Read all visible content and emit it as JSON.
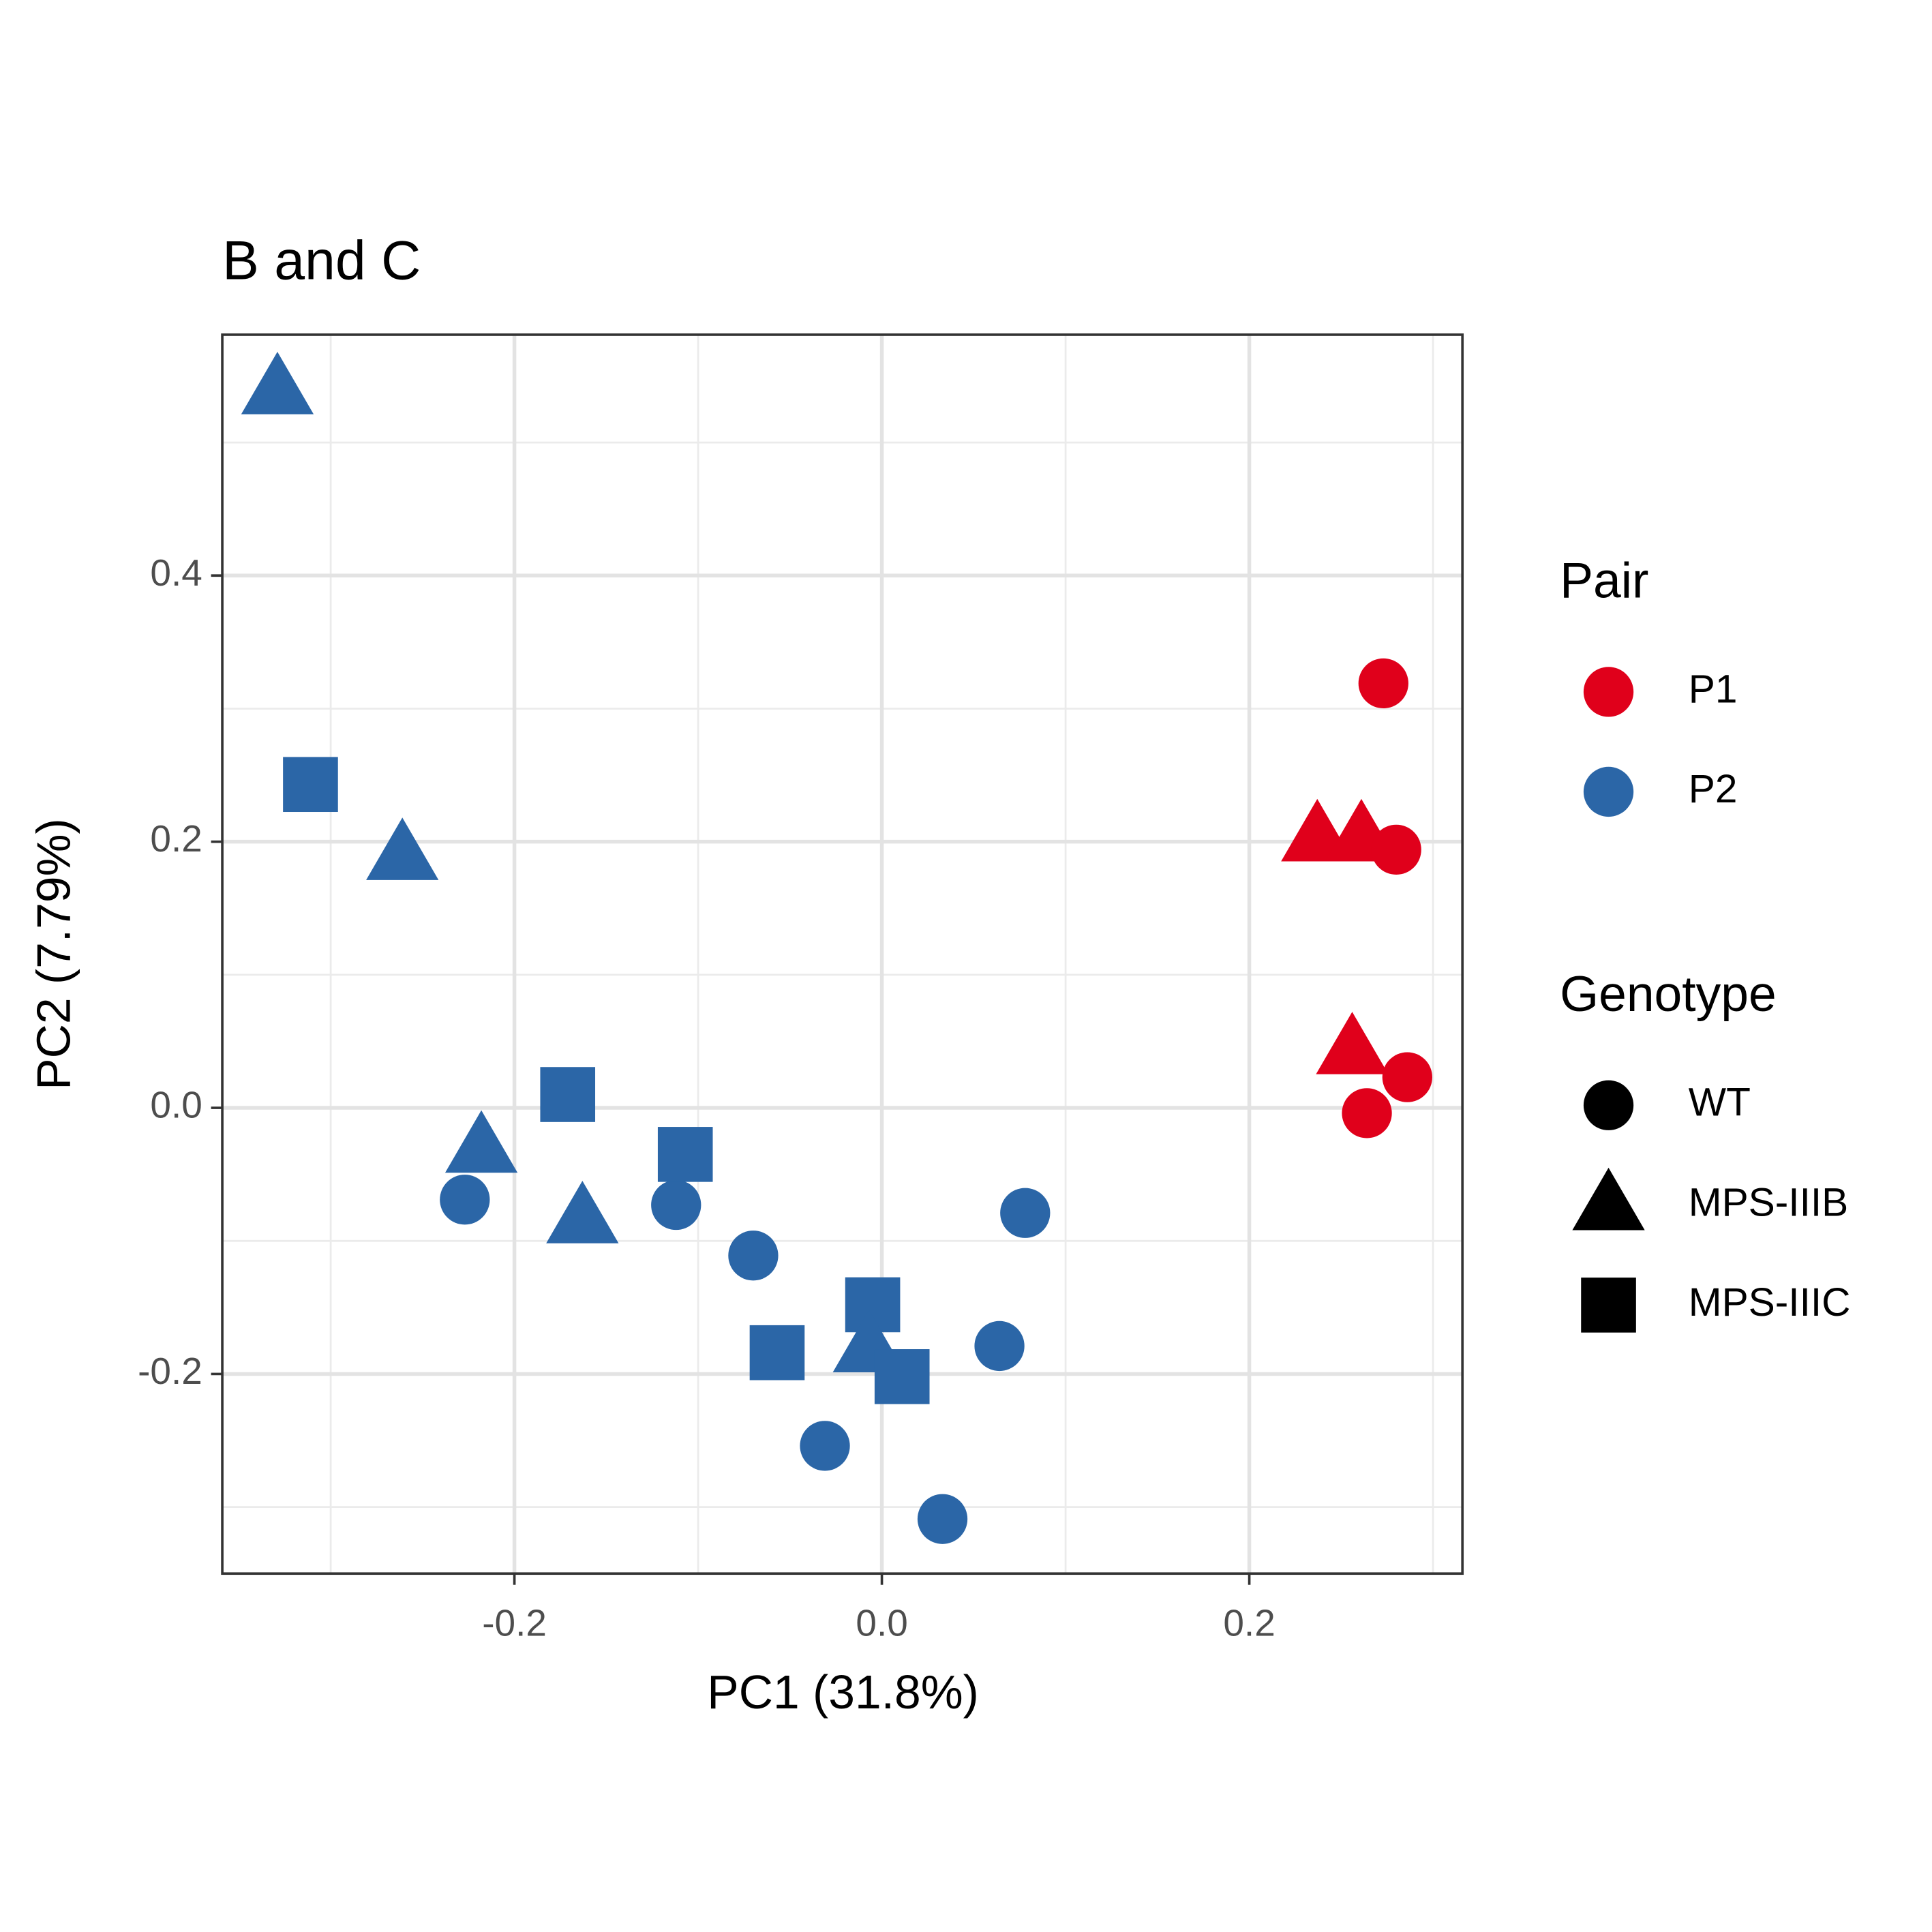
{
  "chart_data": {
    "type": "scatter",
    "title": "B and C",
    "x_label": "PC1 (31.8%)",
    "y_label": "PC2 (7.79%)",
    "xlim": [
      -0.359,
      0.316
    ],
    "ylim": [
      -0.35,
      0.581
    ],
    "xticks": [
      {
        "value": -0.2,
        "label": "-0.2"
      },
      {
        "value": 0,
        "label": "0.0"
      },
      0.2
    ],
    "yticks": [
      {
        "value": -0.2,
        "label": "-0.2"
      },
      {
        "value": 0,
        "label": "0.0"
      },
      0.2,
      0.4
    ],
    "x_minor_grid": [
      -0.3,
      -0.1,
      0.1,
      0.3
    ],
    "y_minor_grid": [
      -0.3,
      -0.1,
      0.1,
      0.3,
      0.5
    ],
    "grid": true,
    "x": [
      -0.329,
      -0.311,
      -0.261,
      -0.171,
      -0.218,
      -0.227,
      -0.163,
      -0.112,
      -0.107,
      -0.07,
      -0.057,
      -0.005,
      -0.007,
      0.011,
      -0.031,
      0.033,
      0.064,
      0.078,
      0.273,
      0.237,
      0.261,
      0.28,
      0.256,
      0.286,
      0.264
    ],
    "y": [
      0.54,
      0.243,
      0.19,
      0.01,
      -0.03,
      -0.069,
      -0.083,
      -0.073,
      -0.035,
      -0.111,
      -0.184,
      -0.148,
      -0.18,
      -0.202,
      -0.254,
      -0.309,
      -0.179,
      -0.079,
      0.319,
      0.204,
      0.204,
      0.194,
      0.044,
      0.023,
      -0.004
    ],
    "pair": [
      "P2",
      "P2",
      "P2",
      "P2",
      "P2",
      "P2",
      "P2",
      "P2",
      "P2",
      "P2",
      "P2",
      "P2",
      "P2",
      "P2",
      "P2",
      "P2",
      "P2",
      "P2",
      "P1",
      "P1",
      "P1",
      "P1",
      "P1",
      "P1",
      "P1"
    ],
    "genotype": [
      "MPS-IIIB",
      "MPS-IIIC",
      "MPS-IIIB",
      "MPS-IIIC",
      "MPS-IIIB",
      "WT",
      "MPS-IIIB",
      "WT",
      "MPS-IIIC",
      "WT",
      "MPS-IIIC",
      "MPS-IIIC",
      "MPS-IIIB",
      "MPS-IIIC",
      "WT",
      "WT",
      "WT",
      "WT",
      "WT",
      "MPS-IIIB",
      "MPS-IIIB",
      "WT",
      "MPS-IIIB",
      "WT",
      "WT"
    ],
    "legends": [
      {
        "title": "Pair",
        "items": [
          {
            "label": "P1",
            "color": "#e0001b"
          },
          {
            "label": "P2",
            "color": "#2b66a7"
          }
        ]
      },
      {
        "title": "Genotype",
        "items": [
          {
            "label": "WT",
            "shape": "circle"
          },
          {
            "label": "MPS-IIIB",
            "shape": "triangle"
          },
          {
            "label": "MPS-IIIC",
            "shape": "square"
          }
        ]
      }
    ]
  }
}
